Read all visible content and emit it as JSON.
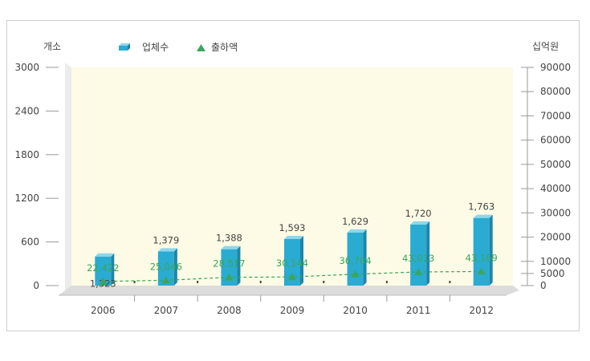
{
  "chart_data": {
    "type": "bar+line",
    "categories": [
      "2006",
      "2007",
      "2008",
      "2009",
      "2010",
      "2011",
      "2012"
    ],
    "left_axis": {
      "label": "개소",
      "ylim": [
        0,
        3000
      ],
      "ticks": [
        0,
        600,
        1200,
        1800,
        2400,
        3000
      ],
      "tick_labels": [
        "0",
        "600",
        "1200",
        "1800",
        "2400",
        "3000"
      ]
    },
    "right_axis": {
      "label": "십억원",
      "ylim": [
        0,
        90000
      ],
      "ticks": [
        0,
        5000,
        10000,
        20000,
        30000,
        40000,
        50000,
        60000,
        70000,
        80000,
        90000
      ],
      "tick_labels": [
        "0",
        "5000",
        "10000",
        "20000",
        "30000",
        "40000",
        "50000",
        "60000",
        "70000",
        "80000",
        "90000"
      ]
    },
    "series": [
      {
        "name": "업체수",
        "type": "bar",
        "axis": "left",
        "color": "#2aabd2",
        "values": [
          1323,
          1379,
          1388,
          1593,
          1629,
          1720,
          1763
        ],
        "labels": [
          "1,323",
          "1,379",
          "1,388",
          "1,593",
          "1,629",
          "1,720",
          "1,763"
        ],
        "bar_heights": [
          400,
          470,
          500,
          640,
          730,
          840,
          930
        ]
      },
      {
        "name": "출하액",
        "type": "line",
        "axis": "right",
        "color": "#3aa65a",
        "style": "dashed",
        "values": [
          22422,
          25046,
          28517,
          30144,
          36704,
          43013,
          43169
        ],
        "labels": [
          "22,422",
          "25,046",
          "28,517",
          "30,144",
          "36,704",
          "43,013",
          "43,169"
        ],
        "plot_levels": [
          1730,
          2190,
          3420,
          3570,
          4700,
          5620,
          5820
        ]
      }
    ],
    "legend": {
      "placement": "top-left",
      "items": [
        "업체수",
        "출하액"
      ]
    },
    "plot_background": "#fdfbe5",
    "grid": false
  }
}
